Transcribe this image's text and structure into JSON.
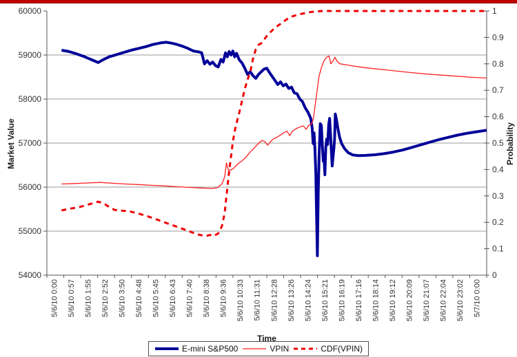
{
  "banner": {
    "color": "#c00000"
  },
  "chart_data": {
    "type": "line",
    "title": "",
    "grid": true,
    "legend_position": "bottom",
    "x_axis": {
      "title": "Time",
      "tick_labels": [
        "5/6/10 0:00",
        "5/6/10 0:57",
        "5/6/10 1:55",
        "5/6/10 2:52",
        "5/6/10 3:50",
        "5/6/10 4:48",
        "5/6/10 5:45",
        "5/6/10 6:43",
        "5/6/10 7:40",
        "5/6/10 8:38",
        "5/6/10 9:36",
        "5/6/10 10:33",
        "5/6/10 11:31",
        "5/6/10 12:28",
        "5/6/10 13:26",
        "5/6/10 14:24",
        "5/6/10 15:21",
        "5/6/10 16:19",
        "5/6/10 17:16",
        "5/6/10 18:14",
        "5/6/10 19:12",
        "5/6/10 20:09",
        "5/6/10 21:07",
        "5/6/10 22:04",
        "5/6/10 23:02",
        "5/7/10 0:00"
      ],
      "hours_range": [
        0,
        24
      ]
    },
    "y_left": {
      "title": "Market Value",
      "min": 54000,
      "max": 60000,
      "step": 1000,
      "tick_labels": [
        "54000",
        "55000",
        "56000",
        "57000",
        "58000",
        "59000",
        "60000"
      ]
    },
    "y_right": {
      "title": "Probability",
      "min": 0,
      "max": 1,
      "step": 0.1,
      "tick_labels": [
        "0",
        "0.1",
        "0.2",
        "0.3",
        "0.4",
        "0.5",
        "0.6",
        "0.7",
        "0.8",
        "0.9",
        "1"
      ]
    },
    "gridline_values": [
      55000,
      56000,
      57000,
      58000,
      59000
    ],
    "colors": {
      "grid": "#999999",
      "axis": "#555555",
      "tick_text": "#333333"
    },
    "series": [
      {
        "name": "E-mini S&P500",
        "axis": "left",
        "color": "#000099",
        "width": 4,
        "dash": "",
        "points": [
          [
            0.8,
            59110
          ],
          [
            1.2,
            59080
          ],
          [
            1.6,
            59030
          ],
          [
            2.0,
            58970
          ],
          [
            2.4,
            58900
          ],
          [
            2.8,
            58830
          ],
          [
            3.1,
            58900
          ],
          [
            3.4,
            58960
          ],
          [
            3.8,
            59010
          ],
          [
            4.2,
            59060
          ],
          [
            4.6,
            59110
          ],
          [
            5.0,
            59150
          ],
          [
            5.4,
            59190
          ],
          [
            5.8,
            59240
          ],
          [
            6.2,
            59275
          ],
          [
            6.5,
            59290
          ],
          [
            6.8,
            59270
          ],
          [
            7.1,
            59240
          ],
          [
            7.4,
            59200
          ],
          [
            7.7,
            59150
          ],
          [
            8.0,
            59090
          ],
          [
            8.3,
            59070
          ],
          [
            8.45,
            59050
          ],
          [
            8.6,
            58800
          ],
          [
            8.75,
            58870
          ],
          [
            8.9,
            58790
          ],
          [
            9.05,
            58840
          ],
          [
            9.2,
            58760
          ],
          [
            9.35,
            58730
          ],
          [
            9.5,
            58900
          ],
          [
            9.62,
            58840
          ],
          [
            9.75,
            59050
          ],
          [
            9.85,
            58960
          ],
          [
            9.95,
            59080
          ],
          [
            10.05,
            59000
          ],
          [
            10.15,
            59090
          ],
          [
            10.25,
            58960
          ],
          [
            10.35,
            59040
          ],
          [
            10.5,
            58890
          ],
          [
            10.65,
            58820
          ],
          [
            10.8,
            58700
          ],
          [
            10.95,
            58560
          ],
          [
            11.1,
            58620
          ],
          [
            11.25,
            58530
          ],
          [
            11.4,
            58470
          ],
          [
            11.55,
            58560
          ],
          [
            11.7,
            58620
          ],
          [
            11.85,
            58680
          ],
          [
            12.0,
            58700
          ],
          [
            12.15,
            58600
          ],
          [
            12.3,
            58510
          ],
          [
            12.45,
            58420
          ],
          [
            12.6,
            58330
          ],
          [
            12.75,
            58390
          ],
          [
            12.9,
            58300
          ],
          [
            13.05,
            58340
          ],
          [
            13.2,
            58240
          ],
          [
            13.35,
            58270
          ],
          [
            13.5,
            58140
          ],
          [
            13.65,
            58120
          ],
          [
            13.8,
            58000
          ],
          [
            13.95,
            57940
          ],
          [
            14.1,
            57800
          ],
          [
            14.25,
            57700
          ],
          [
            14.4,
            57560
          ],
          [
            14.48,
            57340
          ],
          [
            14.53,
            56990
          ],
          [
            14.58,
            57230
          ],
          [
            14.63,
            56850
          ],
          [
            14.68,
            56300
          ],
          [
            14.72,
            55300
          ],
          [
            14.76,
            54440
          ],
          [
            14.81,
            55900
          ],
          [
            14.86,
            56750
          ],
          [
            14.92,
            57440
          ],
          [
            14.98,
            57400
          ],
          [
            15.03,
            56980
          ],
          [
            15.08,
            56590
          ],
          [
            15.12,
            56740
          ],
          [
            15.17,
            56280
          ],
          [
            15.22,
            56900
          ],
          [
            15.27,
            57090
          ],
          [
            15.32,
            56970
          ],
          [
            15.38,
            57430
          ],
          [
            15.43,
            57560
          ],
          [
            15.48,
            57190
          ],
          [
            15.53,
            56790
          ],
          [
            15.57,
            56480
          ],
          [
            15.62,
            56700
          ],
          [
            15.66,
            56870
          ],
          [
            15.7,
            57100
          ],
          [
            15.74,
            57660
          ],
          [
            15.8,
            57540
          ],
          [
            15.88,
            57340
          ],
          [
            15.97,
            57140
          ],
          [
            16.08,
            56990
          ],
          [
            16.25,
            56870
          ],
          [
            16.45,
            56780
          ],
          [
            16.7,
            56730
          ],
          [
            17.0,
            56715
          ],
          [
            17.4,
            56720
          ],
          [
            17.9,
            56735
          ],
          [
            18.4,
            56760
          ],
          [
            18.9,
            56795
          ],
          [
            19.4,
            56840
          ],
          [
            19.9,
            56900
          ],
          [
            20.4,
            56960
          ],
          [
            20.9,
            57020
          ],
          [
            21.4,
            57080
          ],
          [
            21.9,
            57130
          ],
          [
            22.4,
            57180
          ],
          [
            22.9,
            57220
          ],
          [
            23.5,
            57260
          ],
          [
            24.0,
            57290
          ]
        ]
      },
      {
        "name": "VPIN",
        "axis": "right",
        "color": "#ff2020",
        "width": 1.3,
        "dash": "",
        "points": [
          [
            0.8,
            0.345
          ],
          [
            1.5,
            0.347
          ],
          [
            2.2,
            0.349
          ],
          [
            2.9,
            0.351
          ],
          [
            3.6,
            0.348
          ],
          [
            4.3,
            0.345
          ],
          [
            5.0,
            0.343
          ],
          [
            5.7,
            0.34
          ],
          [
            6.4,
            0.338
          ],
          [
            7.1,
            0.335
          ],
          [
            7.8,
            0.332
          ],
          [
            8.4,
            0.33
          ],
          [
            9.0,
            0.328
          ],
          [
            9.3,
            0.331
          ],
          [
            9.55,
            0.345
          ],
          [
            9.7,
            0.372
          ],
          [
            9.8,
            0.425
          ],
          [
            9.9,
            0.398
          ],
          [
            10.05,
            0.398
          ],
          [
            10.2,
            0.405
          ],
          [
            10.4,
            0.42
          ],
          [
            10.6,
            0.43
          ],
          [
            10.8,
            0.442
          ],
          [
            11.0,
            0.458
          ],
          [
            11.15,
            0.47
          ],
          [
            11.3,
            0.48
          ],
          [
            11.45,
            0.492
          ],
          [
            11.6,
            0.502
          ],
          [
            11.75,
            0.51
          ],
          [
            11.9,
            0.505
          ],
          [
            12.05,
            0.492
          ],
          [
            12.2,
            0.505
          ],
          [
            12.35,
            0.515
          ],
          [
            12.5,
            0.52
          ],
          [
            12.7,
            0.528
          ],
          [
            12.9,
            0.538
          ],
          [
            13.1,
            0.545
          ],
          [
            13.25,
            0.528
          ],
          [
            13.4,
            0.545
          ],
          [
            13.55,
            0.552
          ],
          [
            13.7,
            0.558
          ],
          [
            13.85,
            0.562
          ],
          [
            14.0,
            0.565
          ],
          [
            14.15,
            0.552
          ],
          [
            14.3,
            0.568
          ],
          [
            14.45,
            0.572
          ],
          [
            14.55,
            0.595
          ],
          [
            14.65,
            0.648
          ],
          [
            14.75,
            0.7
          ],
          [
            14.85,
            0.752
          ],
          [
            15.0,
            0.79
          ],
          [
            15.15,
            0.815
          ],
          [
            15.3,
            0.826
          ],
          [
            15.4,
            0.83
          ],
          [
            15.5,
            0.8
          ],
          [
            15.62,
            0.812
          ],
          [
            15.72,
            0.825
          ],
          [
            15.85,
            0.808
          ],
          [
            16.0,
            0.8
          ],
          [
            16.3,
            0.797
          ],
          [
            16.7,
            0.792
          ],
          [
            17.2,
            0.787
          ],
          [
            17.8,
            0.782
          ],
          [
            18.5,
            0.777
          ],
          [
            19.2,
            0.772
          ],
          [
            20.0,
            0.766
          ],
          [
            20.8,
            0.761
          ],
          [
            21.6,
            0.757
          ],
          [
            22.4,
            0.753
          ],
          [
            23.2,
            0.749
          ],
          [
            24.0,
            0.746
          ]
        ]
      },
      {
        "name": "CDF(VPIN)",
        "axis": "right",
        "color": "#ee0000",
        "width": 3,
        "dash": "7 6",
        "points": [
          [
            0.8,
            0.245
          ],
          [
            1.3,
            0.252
          ],
          [
            1.8,
            0.258
          ],
          [
            2.3,
            0.268
          ],
          [
            2.8,
            0.278
          ],
          [
            3.1,
            0.272
          ],
          [
            3.4,
            0.258
          ],
          [
            3.7,
            0.247
          ],
          [
            4.1,
            0.244
          ],
          [
            4.5,
            0.242
          ],
          [
            4.9,
            0.235
          ],
          [
            5.3,
            0.227
          ],
          [
            5.7,
            0.218
          ],
          [
            6.1,
            0.208
          ],
          [
            6.5,
            0.198
          ],
          [
            6.9,
            0.188
          ],
          [
            7.3,
            0.178
          ],
          [
            7.7,
            0.168
          ],
          [
            8.0,
            0.16
          ],
          [
            8.3,
            0.153
          ],
          [
            8.65,
            0.148
          ],
          [
            8.9,
            0.152
          ],
          [
            9.1,
            0.148
          ],
          [
            9.35,
            0.158
          ],
          [
            9.55,
            0.185
          ],
          [
            9.7,
            0.235
          ],
          [
            9.85,
            0.33
          ],
          [
            9.95,
            0.395
          ],
          [
            10.05,
            0.45
          ],
          [
            10.15,
            0.505
          ],
          [
            10.25,
            0.545
          ],
          [
            10.35,
            0.575
          ],
          [
            10.5,
            0.615
          ],
          [
            10.65,
            0.66
          ],
          [
            10.8,
            0.705
          ],
          [
            10.95,
            0.74
          ],
          [
            11.1,
            0.77
          ],
          [
            11.25,
            0.82
          ],
          [
            11.4,
            0.855
          ],
          [
            11.55,
            0.872
          ],
          [
            11.7,
            0.878
          ],
          [
            11.85,
            0.892
          ],
          [
            12.0,
            0.905
          ],
          [
            12.2,
            0.92
          ],
          [
            12.4,
            0.933
          ],
          [
            12.6,
            0.944
          ],
          [
            12.8,
            0.954
          ],
          [
            13.0,
            0.964
          ],
          [
            13.2,
            0.974
          ],
          [
            13.45,
            0.981
          ],
          [
            13.7,
            0.986
          ],
          [
            13.95,
            0.99
          ],
          [
            14.2,
            0.994
          ],
          [
            14.5,
            0.997
          ],
          [
            14.8,
            0.999
          ],
          [
            15.1,
            1.0
          ],
          [
            16.0,
            1.0
          ],
          [
            17.0,
            1.0
          ],
          [
            18.0,
            1.0
          ],
          [
            19.0,
            1.0
          ],
          [
            20.0,
            1.0
          ],
          [
            21.0,
            1.0
          ],
          [
            22.0,
            1.0
          ],
          [
            23.0,
            1.0
          ],
          [
            24.0,
            1.0
          ]
        ]
      }
    ]
  }
}
